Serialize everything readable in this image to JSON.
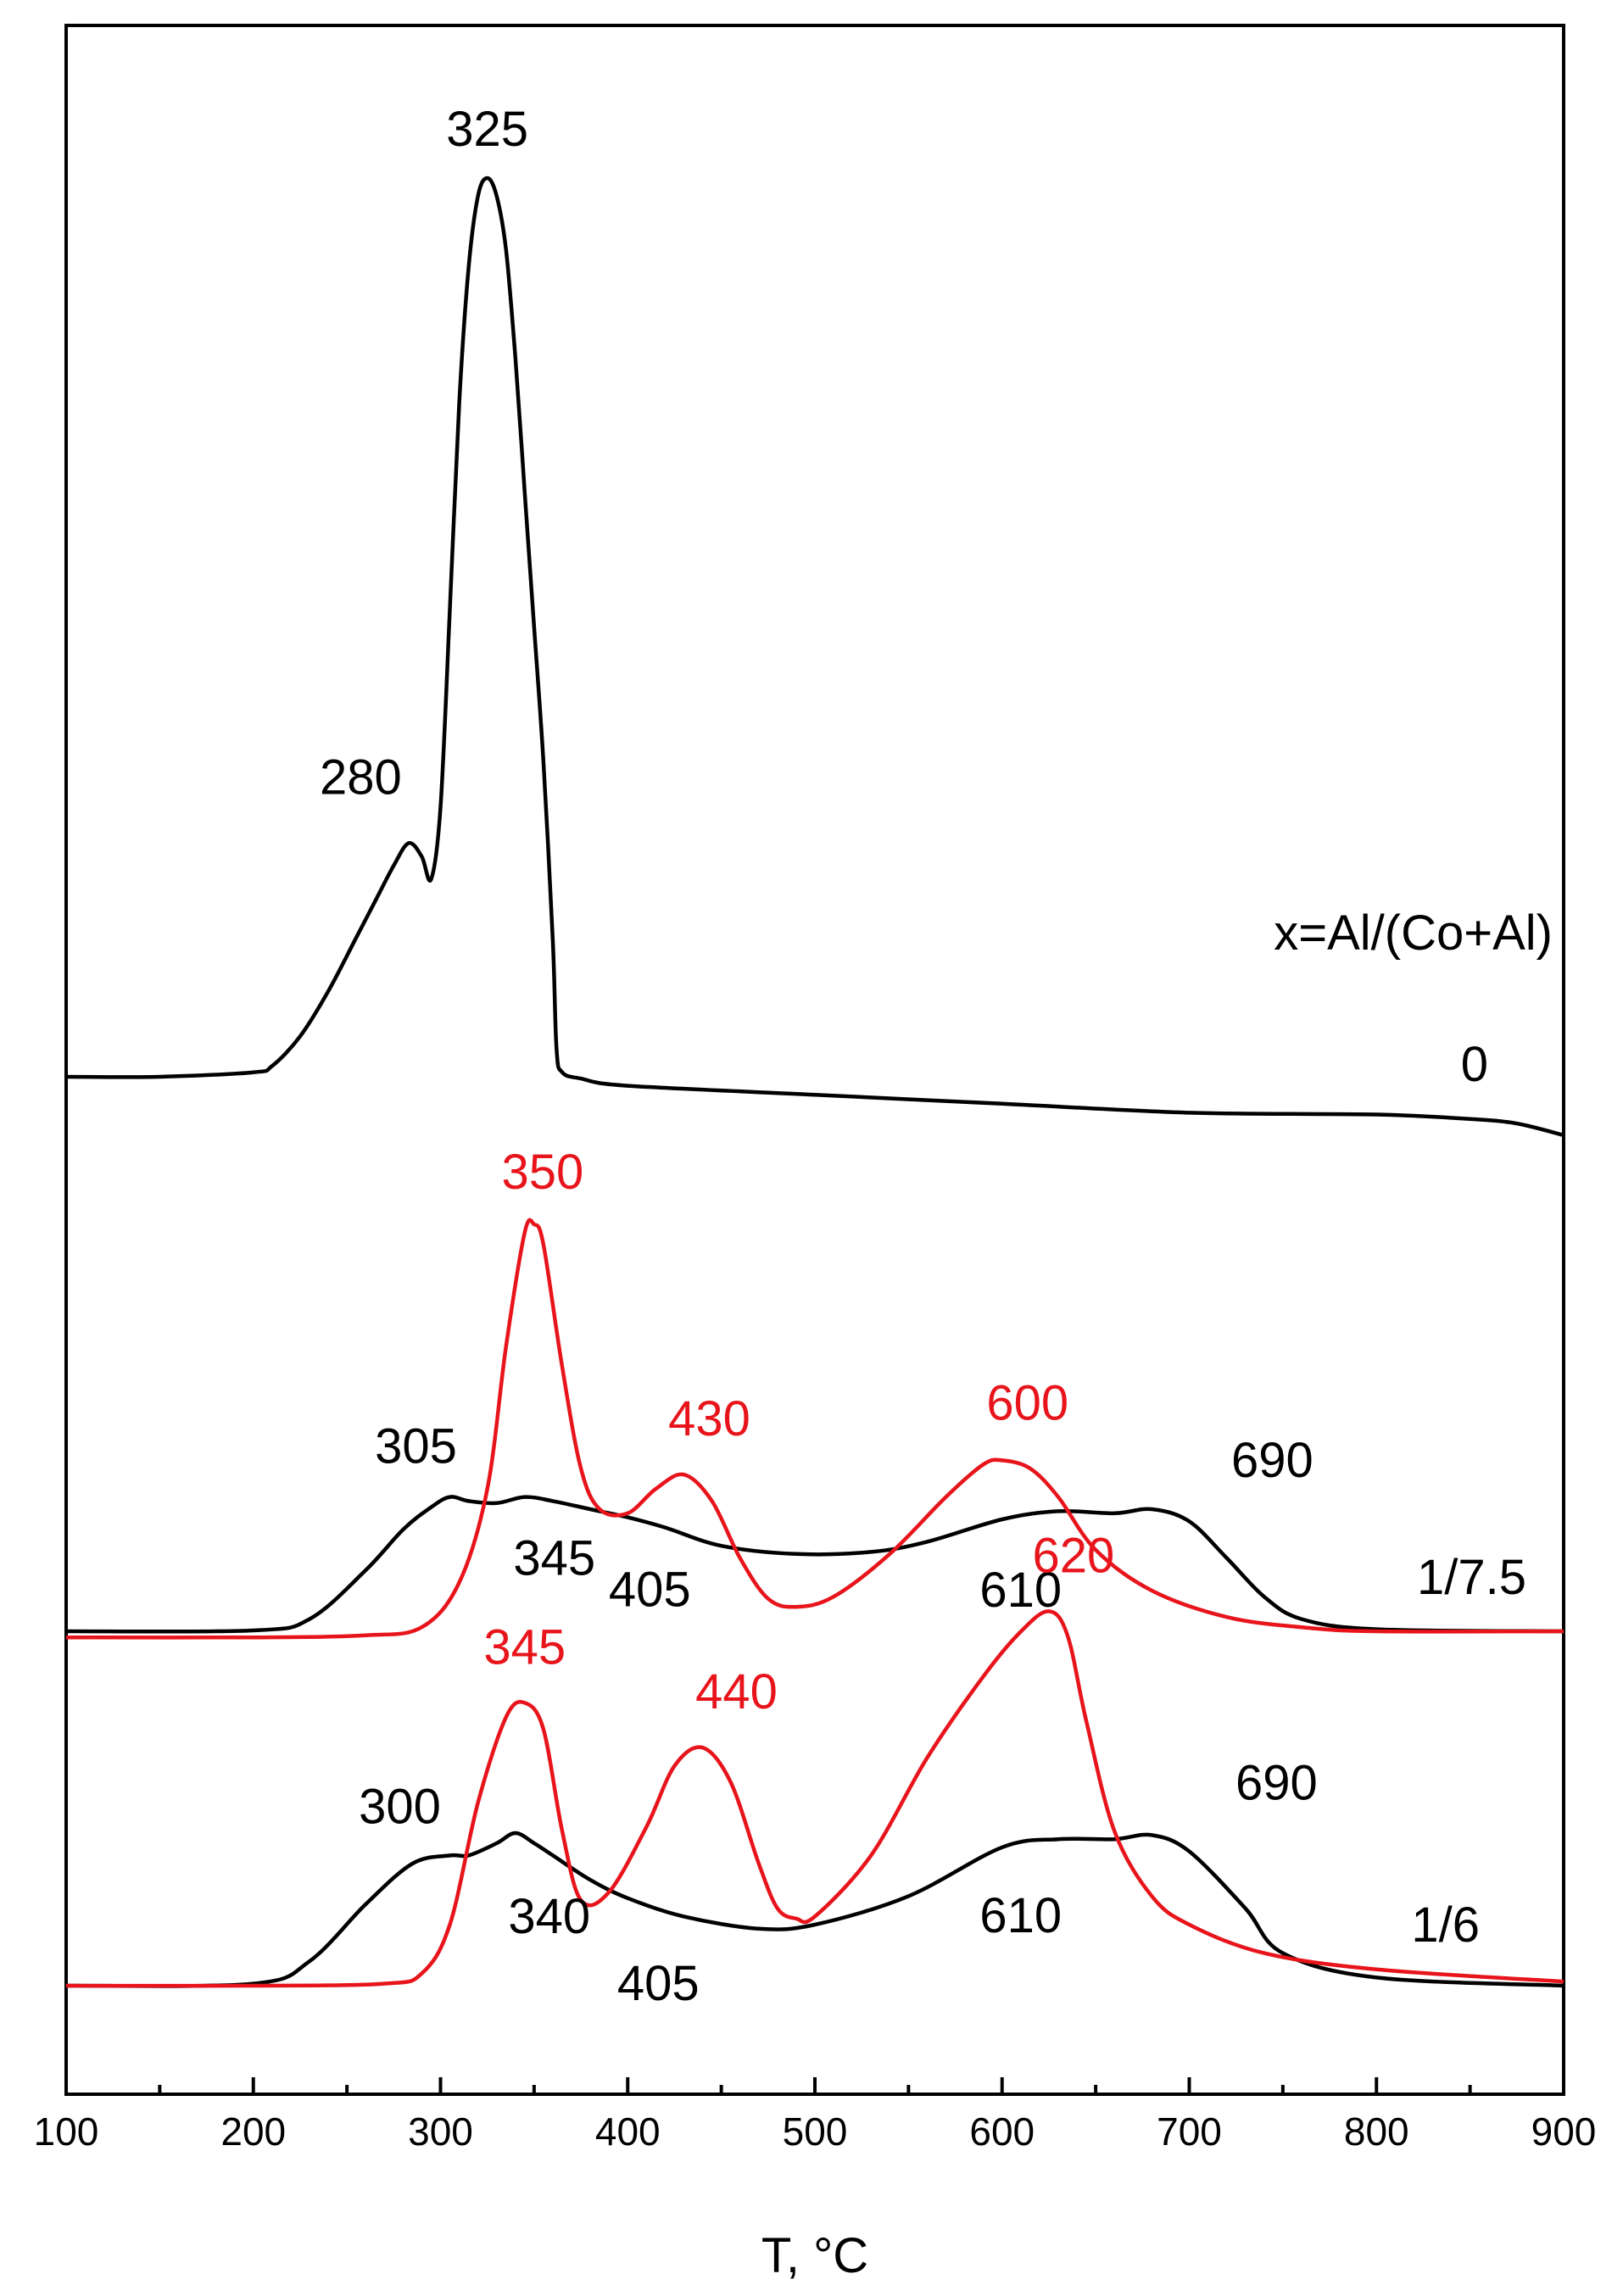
{
  "chart_data": {
    "type": "line",
    "title": "",
    "xlabel": "T, ",
    "xlabel_unit": "°C",
    "ylabel": "",
    "xlim": [
      100,
      900
    ],
    "x_ticks": [
      "100",
      "200",
      "300",
      "400",
      "500",
      "600",
      "700",
      "800",
      "900"
    ],
    "y_ticks_shown": false,
    "grid": false,
    "legend_text": "x=Al/(Co+Al)",
    "colors": {
      "black": "#000000",
      "red": "#e8141b"
    },
    "groups": [
      {
        "label": "0",
        "series": [
          {
            "color": "black",
            "x": [
              100,
              150,
              200,
              210,
              225,
              240,
              255,
              265,
              275,
              283,
              290,
              295,
              300,
              305,
              310,
              315,
              320,
              325,
              330,
              335,
              340,
              345,
              350,
              355,
              360,
              362,
              365,
              375,
              400,
              500,
              600,
              700,
              800,
              850,
              875,
              900
            ],
            "y": [
              0.0,
              0.0,
              0.05,
              0.12,
              0.45,
              0.95,
              1.55,
              1.95,
              2.35,
              2.6,
              2.45,
              2.2,
              3.0,
              5.2,
              7.5,
              9.0,
              9.8,
              10.0,
              9.8,
              9.2,
              8.0,
              6.5,
              5.0,
              3.5,
              1.5,
              0.3,
              0.05,
              -0.02,
              -0.1,
              -0.2,
              -0.3,
              -0.4,
              -0.42,
              -0.47,
              -0.52,
              -0.65
            ]
          }
        ]
      },
      {
        "label": "1/7.5",
        "series": [
          {
            "color": "black",
            "x": [
              100,
              200,
              230,
              260,
              280,
              295,
              305,
              315,
              330,
              345,
              360,
              380,
              400,
              420,
              450,
              490,
              530,
              560,
              600,
              630,
              660,
              680,
              700,
              720,
              740,
              760,
              800,
              900
            ],
            "y": [
              0.0,
              0.02,
              0.3,
              1.5,
              2.5,
              3.05,
              3.3,
              3.2,
              3.15,
              3.3,
              3.2,
              3.0,
              2.8,
              2.55,
              2.1,
              1.9,
              1.95,
              2.2,
              2.75,
              2.95,
              2.9,
              3.0,
              2.7,
              1.8,
              0.85,
              0.3,
              0.05,
              0.0
            ]
          },
          {
            "color": "red",
            "x": [
              100,
              200,
              260,
              290,
              310,
              325,
              335,
              345,
              350,
              355,
              365,
              375,
              385,
              400,
              415,
              430,
              445,
              460,
              475,
              490,
              510,
              540,
              570,
              590,
              600,
              615,
              630,
              650,
              680,
              720,
              760,
              800,
              900
            ],
            "y": [
              -0.15,
              -0.15,
              -0.1,
              0.1,
              1.2,
              3.5,
              7.0,
              9.8,
              10.0,
              9.5,
              6.5,
              4.0,
              3.0,
              2.9,
              3.5,
              3.85,
              3.2,
              1.8,
              0.8,
              0.6,
              0.85,
              1.9,
              3.3,
              4.1,
              4.2,
              4.0,
              3.3,
              2.0,
              1.0,
              0.35,
              0.1,
              0.0,
              0.0
            ]
          }
        ]
      },
      {
        "label": "1/6",
        "series": [
          {
            "color": "black",
            "x": [
              100,
              200,
              230,
              260,
              285,
              305,
              315,
              330,
              340,
              350,
              360,
              380,
              400,
              430,
              470,
              500,
              550,
              600,
              630,
              660,
              680,
              700,
              730,
              750,
              800,
              900
            ],
            "y": [
              0.0,
              0.05,
              0.6,
              2.0,
              3.0,
              3.2,
              3.2,
              3.5,
              3.75,
              3.5,
              3.2,
              2.6,
              2.15,
              1.7,
              1.4,
              1.5,
              2.2,
              3.4,
              3.6,
              3.6,
              3.7,
              3.3,
              1.9,
              0.8,
              0.2,
              0.0
            ]
          },
          {
            "color": "red",
            "x": [
              100,
              200,
              270,
              290,
              305,
              320,
              335,
              345,
              355,
              365,
              375,
              390,
              410,
              425,
              440,
              455,
              470,
              480,
              490,
              500,
              530,
              560,
              590,
              610,
              625,
              635,
              645,
              660,
              680,
              700,
              740,
              800,
              900
            ],
            "y": [
              0.0,
              0.0,
              0.05,
              0.3,
              1.5,
              4.5,
              6.6,
              6.95,
              6.3,
              3.8,
              2.1,
              2.3,
              3.9,
              5.4,
              5.85,
              5.0,
              3.0,
              1.9,
              1.65,
              1.7,
              3.2,
              5.6,
              7.6,
              8.7,
              9.2,
              8.6,
              6.5,
              3.8,
              2.2,
              1.5,
              0.8,
              0.4,
              0.1
            ]
          }
        ]
      }
    ],
    "annotations": [
      {
        "group": 0,
        "text": "325",
        "x": 325,
        "y": 10.0,
        "color": "black"
      },
      {
        "group": 0,
        "text": "280",
        "x": 280,
        "y": 2.6,
        "color": "black"
      },
      {
        "group": 1,
        "text": "350",
        "x": 350,
        "y": 10.0,
        "color": "red"
      },
      {
        "group": 1,
        "text": "430",
        "x": 430,
        "y": 3.85,
        "color": "red"
      },
      {
        "group": 1,
        "text": "600",
        "x": 600,
        "y": 4.2,
        "color": "red"
      },
      {
        "group": 1,
        "text": "305",
        "x": 305,
        "y": 3.3,
        "color": "black"
      },
      {
        "group": 1,
        "text": "345",
        "x": 345,
        "y": 3.3,
        "color": "black"
      },
      {
        "group": 1,
        "text": "405",
        "x": 405,
        "y": 2.8,
        "color": "black"
      },
      {
        "group": 1,
        "text": "610",
        "x": 610,
        "y": 2.9,
        "color": "black"
      },
      {
        "group": 1,
        "text": "690",
        "x": 690,
        "y": 3.0,
        "color": "black"
      },
      {
        "group": 2,
        "text": "345",
        "x": 345,
        "y": 6.95,
        "color": "red"
      },
      {
        "group": 2,
        "text": "440",
        "x": 440,
        "y": 5.85,
        "color": "red"
      },
      {
        "group": 2,
        "text": "620",
        "x": 620,
        "y": 9.2,
        "color": "red"
      },
      {
        "group": 2,
        "text": "300",
        "x": 300,
        "y": 3.2,
        "color": "black"
      },
      {
        "group": 2,
        "text": "340",
        "x": 340,
        "y": 3.75,
        "color": "black"
      },
      {
        "group": 2,
        "text": "405",
        "x": 405,
        "y": 2.15,
        "color": "black"
      },
      {
        "group": 2,
        "text": "610",
        "x": 610,
        "y": 3.4,
        "color": "black"
      },
      {
        "group": 2,
        "text": "690",
        "x": 690,
        "y": 3.7,
        "color": "black"
      }
    ]
  }
}
